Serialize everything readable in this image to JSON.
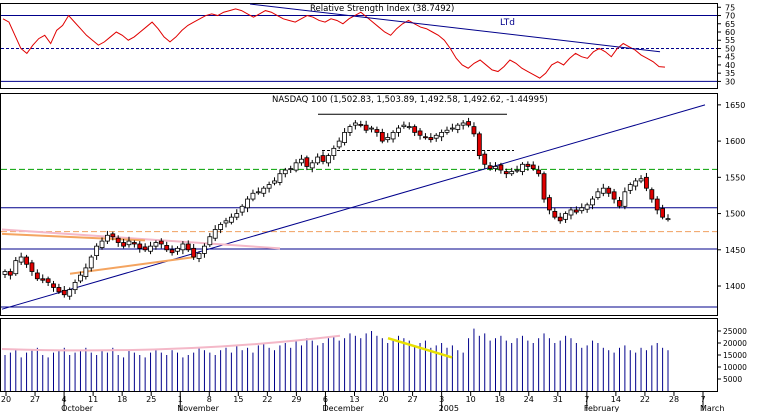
{
  "chart_data": {
    "type": "candlestick",
    "rsi_panel": {
      "title": "Relative Strength Index (38.7492)",
      "annotation": "LTd",
      "y_ticks": [
        30,
        35,
        40,
        45,
        50,
        55,
        60,
        65,
        70,
        75
      ],
      "ylim": [
        26,
        77
      ],
      "ref_lines": [
        {
          "value": 70,
          "style": "solid"
        },
        {
          "value": 50,
          "style": "dashed"
        },
        {
          "value": 30,
          "style": "solid"
        }
      ],
      "values": [
        68,
        66,
        58,
        50,
        47,
        52,
        56,
        58,
        53,
        61,
        64,
        70,
        66,
        62,
        58,
        55,
        52,
        54,
        57,
        60,
        58,
        55,
        57,
        60,
        63,
        66,
        62,
        57,
        54,
        57,
        61,
        64,
        66,
        68,
        70,
        71,
        70,
        72,
        73,
        74,
        73,
        71,
        69,
        71,
        73,
        72,
        70,
        68,
        67,
        66,
        68,
        70,
        69,
        67,
        66,
        68,
        67,
        65,
        68,
        70,
        72,
        69,
        66,
        63,
        60,
        58,
        62,
        65,
        67,
        65,
        63,
        62,
        60,
        58,
        55,
        50,
        44,
        40,
        38,
        41,
        43,
        40,
        37,
        36,
        39,
        43,
        41,
        38,
        36,
        34,
        32,
        35,
        40,
        42,
        40,
        44,
        47,
        45,
        44,
        48,
        50,
        48,
        45,
        50,
        53,
        51,
        49,
        46,
        44,
        42,
        39,
        38.7
      ]
    },
    "price_panel": {
      "title": "NASDAQ 100 (1,502.83, 1,503.89, 1,492.58, 1,492.62, -1.44995)",
      "y_ticks": [
        1400,
        1450,
        1500,
        1550,
        1600,
        1650
      ],
      "ylim": [
        1360,
        1665
      ],
      "ref_lines": [
        {
          "value": 1561,
          "style": "dashed-green"
        },
        {
          "value": 1508,
          "style": "solid-blue"
        },
        {
          "value": 1475,
          "style": "dashed-orange"
        },
        {
          "value": 1451,
          "style": "solid-blue"
        },
        {
          "value": 1371,
          "style": "solid-blue"
        }
      ],
      "closes": [
        1420,
        1415,
        1435,
        1440,
        1430,
        1420,
        1410,
        1408,
        1405,
        1398,
        1392,
        1388,
        1395,
        1405,
        1415,
        1425,
        1440,
        1455,
        1462,
        1470,
        1468,
        1460,
        1455,
        1462,
        1458,
        1452,
        1450,
        1455,
        1460,
        1458,
        1450,
        1446,
        1452,
        1458,
        1450,
        1440,
        1445,
        1455,
        1468,
        1478,
        1485,
        1490,
        1495,
        1500,
        1510,
        1520,
        1528,
        1530,
        1535,
        1540,
        1545,
        1555,
        1560,
        1562,
        1570,
        1575,
        1565,
        1570,
        1578,
        1572,
        1580,
        1590,
        1600,
        1612,
        1620,
        1625,
        1622,
        1615,
        1618,
        1612,
        1600,
        1605,
        1612,
        1618,
        1622,
        1620,
        1612,
        1608,
        1605,
        1602,
        1608,
        1612,
        1615,
        1618,
        1622,
        1625,
        1622,
        1610,
        1580,
        1568,
        1562,
        1565,
        1560,
        1555,
        1558,
        1560,
        1568,
        1565,
        1562,
        1555,
        1520,
        1505,
        1495,
        1490,
        1500,
        1505,
        1502,
        1508,
        1512,
        1520,
        1530,
        1535,
        1528,
        1520,
        1510,
        1530,
        1540,
        1545,
        1548,
        1535,
        1520,
        1505,
        1495,
        1493
      ]
    },
    "volume_panel": {
      "y_ticks": [
        5000,
        10000,
        15000,
        20000,
        25000
      ],
      "ylim": [
        0,
        30000
      ],
      "values": [
        15000,
        16000,
        17000,
        14000,
        16000,
        17000,
        18000,
        15000,
        14000,
        16000,
        17000,
        18000,
        15000,
        16000,
        17000,
        18000,
        16000,
        15000,
        17000,
        16000,
        18000,
        15000,
        14000,
        17000,
        16000,
        15000,
        14000,
        16000,
        17000,
        16000,
        15000,
        17000,
        16000,
        14000,
        15000,
        16000,
        18000,
        17000,
        16000,
        15000,
        17000,
        18000,
        16000,
        19000,
        17000,
        18000,
        16000,
        19000,
        20000,
        18000,
        17000,
        19000,
        20000,
        18000,
        21000,
        19000,
        22000,
        21000,
        19000,
        20000,
        22000,
        23000,
        21000,
        22000,
        24000,
        23000,
        22000,
        24000,
        25000,
        23000,
        22000,
        20000,
        21000,
        23000,
        22000,
        21000,
        19000,
        20000,
        21000,
        18000,
        19000,
        20000,
        18000,
        19000,
        17000,
        16000,
        22000,
        26000,
        23000,
        24000,
        21000,
        22000,
        23000,
        21000,
        20000,
        22000,
        23000,
        21000,
        20000,
        22000,
        24000,
        22000,
        20000,
        21000,
        23000,
        22000,
        20000,
        18000,
        19000,
        21000,
        20000,
        18000,
        17000,
        16000,
        18000,
        19000,
        17000,
        16000,
        18000,
        17000,
        19000,
        20000,
        18000,
        17000
      ]
    },
    "x_axis": {
      "ticks": [
        "20",
        "27",
        "4",
        "11",
        "18",
        "25",
        "1",
        "8",
        "15",
        "22",
        "29",
        "6",
        "13",
        "20",
        "27",
        "3",
        "10",
        "18",
        "24",
        "31",
        "7",
        "14",
        "22",
        "28",
        "7"
      ],
      "months": [
        "October",
        "November",
        "December",
        "2005",
        "February",
        "March"
      ]
    }
  }
}
